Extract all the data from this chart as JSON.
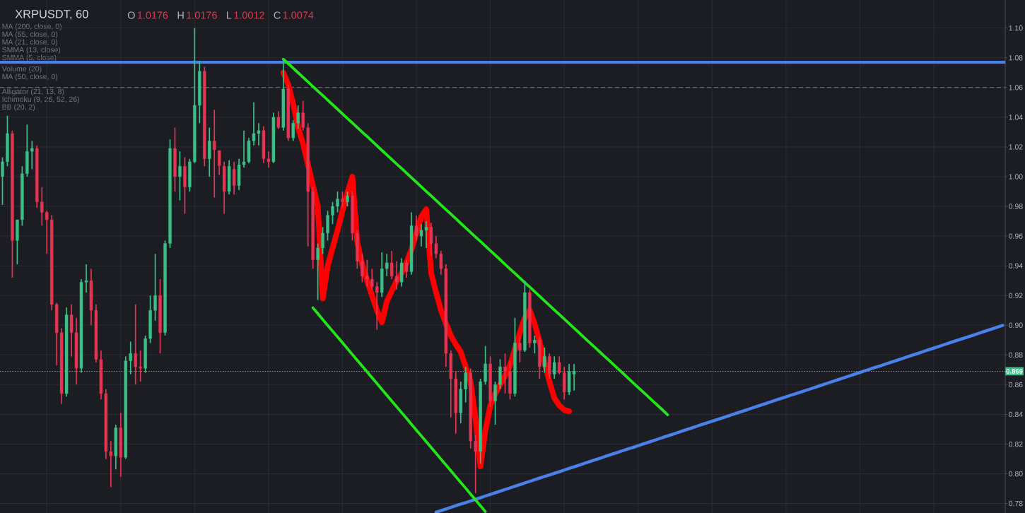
{
  "chart_data": {
    "type": "candlestick",
    "title": "XRPUSDT, 60",
    "categories": [
      null,
      null,
      null,
      null,
      null,
      null,
      null,
      null,
      null,
      null,
      null,
      null,
      null,
      null,
      null,
      null,
      null,
      null,
      null,
      null,
      null,
      null,
      null,
      null,
      null,
      null,
      null,
      null,
      null,
      null,
      null,
      null,
      null,
      null,
      null,
      null,
      null,
      null,
      null,
      null,
      null,
      null,
      null,
      null,
      null,
      null,
      null,
      null,
      null,
      null,
      null,
      null,
      null,
      null,
      null,
      null,
      null,
      null,
      null,
      null,
      null,
      null,
      null,
      null,
      null,
      null,
      null,
      null,
      null,
      null,
      null,
      null,
      null,
      null,
      null,
      null,
      null,
      null,
      null,
      null,
      null,
      null,
      null,
      null,
      null,
      null,
      null,
      null,
      null,
      null,
      null,
      null,
      null,
      null,
      null,
      null,
      null,
      null,
      null,
      null,
      null,
      null,
      null,
      null,
      null,
      null,
      null,
      null,
      null,
      null,
      null,
      null,
      null,
      null,
      null,
      null,
      null,
      null,
      null,
      null,
      null,
      null,
      null,
      null,
      null,
      null,
      null,
      null,
      null,
      null,
      null,
      null,
      null,
      null,
      null,
      null,
      null,
      null,
      null,
      null,
      null,
      null,
      null,
      null,
      null,
      null,
      null,
      null,
      null,
      null,
      null,
      null,
      null,
      null,
      null,
      null,
      null,
      null,
      null,
      null,
      null,
      null,
      null,
      null,
      null,
      null,
      null,
      null,
      null,
      null,
      null,
      null,
      null,
      null,
      null,
      null,
      null,
      null,
      null,
      null,
      null,
      null,
      null,
      null,
      null,
      null,
      null,
      null,
      null,
      null,
      null,
      null,
      null,
      null,
      null,
      null,
      null,
      null,
      null,
      null,
      null,
      null,
      null,
      null
    ],
    "ohlc": [
      [
        1.0,
        1.013,
        0.981,
        1.01
      ],
      [
        1.01,
        1.041,
        1.007,
        1.029
      ],
      [
        1.029,
        1.031,
        0.932,
        0.957
      ],
      [
        0.957,
        0.971,
        0.941,
        0.971
      ],
      [
        0.971,
        1.007,
        0.967,
        1.002
      ],
      [
        1.002,
        1.035,
        1.0,
        1.017
      ],
      [
        1.017,
        1.024,
        1.005,
        1.019
      ],
      [
        1.019,
        1.021,
        0.979,
        0.983
      ],
      [
        0.983,
        0.993,
        0.967,
        0.976
      ],
      [
        0.976,
        0.977,
        0.948,
        0.971
      ],
      [
        0.971,
        0.974,
        0.91,
        0.914
      ],
      [
        0.914,
        0.915,
        0.873,
        0.895
      ],
      [
        0.895,
        0.898,
        0.847,
        0.854
      ],
      [
        0.854,
        0.912,
        0.852,
        0.907
      ],
      [
        0.907,
        0.914,
        0.879,
        0.895
      ],
      [
        0.895,
        0.905,
        0.86,
        0.871
      ],
      [
        0.871,
        0.931,
        0.868,
        0.929
      ],
      [
        0.929,
        0.941,
        0.922,
        0.93
      ],
      [
        0.93,
        0.938,
        0.9,
        0.91
      ],
      [
        0.91,
        0.914,
        0.875,
        0.877
      ],
      [
        0.877,
        0.883,
        0.85,
        0.854
      ],
      [
        0.854,
        0.857,
        0.81,
        0.815
      ],
      [
        0.815,
        0.822,
        0.791,
        0.812
      ],
      [
        0.812,
        0.833,
        0.803,
        0.831
      ],
      [
        0.831,
        0.841,
        0.798,
        0.811
      ],
      [
        0.811,
        0.879,
        0.81,
        0.876
      ],
      [
        0.876,
        0.889,
        0.867,
        0.881
      ],
      [
        0.881,
        0.914,
        0.86,
        0.872
      ],
      [
        0.872,
        0.883,
        0.862,
        0.871
      ],
      [
        0.871,
        0.893,
        0.868,
        0.891
      ],
      [
        0.891,
        0.92,
        0.888,
        0.91
      ],
      [
        0.91,
        0.948,
        0.903,
        0.92
      ],
      [
        0.92,
        0.931,
        0.881,
        0.895
      ],
      [
        0.895,
        0.957,
        0.893,
        0.955
      ],
      [
        0.955,
        1.025,
        0.952,
        1.019
      ],
      [
        1.019,
        1.033,
        0.99,
        1.0
      ],
      [
        1.0,
        1.017,
        0.984,
        1.007
      ],
      [
        1.007,
        1.013,
        0.975,
        0.993
      ],
      [
        0.993,
        1.012,
        0.99,
        1.01
      ],
      [
        1.01,
        1.1,
        1.009,
        1.048
      ],
      [
        1.048,
        1.078,
        1.036,
        1.071
      ],
      [
        1.071,
        1.074,
        1.007,
        1.012
      ],
      [
        1.012,
        1.033,
        1.0,
        1.024
      ],
      [
        1.024,
        1.045,
        0.986,
        1.018
      ],
      [
        1.0176,
        1.0176,
        1.0012,
        1.0074
      ],
      [
        1.007,
        1.01,
        0.975,
        0.99
      ],
      [
        0.99,
        1.011,
        0.988,
        1.007
      ],
      [
        1.005,
        1.01,
        0.988,
        0.994
      ],
      [
        0.994,
        1.012,
        0.991,
        1.008
      ],
      [
        1.008,
        1.031,
        1.006,
        1.01
      ],
      [
        1.01,
        1.026,
        1.009,
        1.024
      ],
      [
        1.024,
        1.05,
        1.021,
        1.029
      ],
      [
        1.029,
        1.036,
        1.021,
        1.031
      ],
      [
        1.031,
        1.034,
        1.009,
        1.012
      ],
      [
        1.012,
        1.017,
        1.006,
        1.01
      ],
      [
        1.01,
        1.043,
        1.009,
        1.04
      ],
      [
        1.04,
        1.044,
        1.032,
        1.033
      ],
      [
        1.033,
        1.079,
        1.031,
        1.059
      ],
      [
        1.059,
        1.062,
        1.024,
        1.026
      ],
      [
        1.026,
        1.038,
        1.024,
        1.036
      ],
      [
        1.036,
        1.048,
        1.032,
        1.043
      ],
      [
        1.043,
        1.051,
        1.031,
        1.033
      ],
      [
        1.033,
        1.036,
        0.953,
        0.99
      ],
      [
        0.99,
        0.993,
        0.938,
        0.944
      ],
      [
        0.944,
        0.955,
        0.917,
        0.952
      ],
      [
        0.952,
        0.966,
        0.948,
        0.962
      ],
      [
        0.962,
        0.977,
        0.957,
        0.974
      ],
      [
        0.974,
        0.983,
        0.968,
        0.98
      ],
      [
        0.98,
        0.99,
        0.976,
        0.985
      ],
      [
        0.985,
        0.99,
        0.979,
        0.983
      ],
      [
        0.983,
        0.99,
        0.98,
        0.987
      ],
      [
        0.987,
        0.99,
        0.957,
        0.962
      ],
      [
        0.962,
        0.964,
        0.938,
        0.943
      ],
      [
        0.943,
        0.948,
        0.929,
        0.933
      ],
      [
        0.933,
        0.944,
        0.926,
        0.931
      ],
      [
        0.931,
        0.938,
        0.924,
        0.926
      ],
      [
        0.926,
        0.929,
        0.897,
        0.922
      ],
      [
        0.922,
        0.949,
        0.919,
        0.938
      ],
      [
        0.938,
        0.948,
        0.933,
        0.942
      ],
      [
        0.942,
        0.95,
        0.931,
        0.933
      ],
      [
        0.933,
        0.943,
        0.924,
        0.929
      ],
      [
        0.929,
        0.945,
        0.926,
        0.942
      ],
      [
        0.942,
        0.944,
        0.932,
        0.936
      ],
      [
        0.936,
        0.976,
        0.934,
        0.967
      ],
      [
        0.967,
        0.974,
        0.957,
        0.96
      ],
      [
        0.96,
        0.968,
        0.953,
        0.964
      ],
      [
        0.964,
        0.97,
        0.952,
        0.966
      ],
      [
        0.966,
        0.969,
        0.947,
        0.955
      ],
      [
        0.955,
        0.96,
        0.945,
        0.948
      ],
      [
        0.948,
        0.95,
        0.934,
        0.938
      ],
      [
        0.938,
        0.941,
        0.872,
        0.881
      ],
      [
        0.881,
        0.883,
        0.838,
        0.864
      ],
      [
        0.864,
        0.869,
        0.827,
        0.841
      ],
      [
        0.841,
        0.862,
        0.834,
        0.857
      ],
      [
        0.857,
        0.872,
        0.848,
        0.868
      ],
      [
        0.868,
        0.871,
        0.817,
        0.822
      ],
      [
        0.822,
        0.826,
        0.787,
        0.815
      ],
      [
        0.815,
        0.864,
        0.807,
        0.862
      ],
      [
        0.862,
        0.886,
        0.86,
        0.874
      ],
      [
        0.874,
        0.879,
        0.845,
        0.849
      ],
      [
        0.849,
        0.862,
        0.833,
        0.86
      ],
      [
        0.86,
        0.877,
        0.857,
        0.872
      ],
      [
        0.872,
        0.881,
        0.854,
        0.869
      ],
      [
        0.869,
        0.876,
        0.85,
        0.854
      ],
      [
        0.854,
        0.905,
        0.852,
        0.888
      ],
      [
        0.888,
        0.893,
        0.875,
        0.883
      ],
      [
        0.883,
        0.93,
        0.882,
        0.922
      ],
      [
        0.922,
        0.924,
        0.885,
        0.888
      ],
      [
        0.888,
        0.893,
        0.881,
        0.89
      ],
      [
        0.89,
        0.892,
        0.864,
        0.872
      ],
      [
        0.872,
        0.885,
        0.868,
        0.879
      ],
      [
        0.879,
        0.881,
        0.864,
        0.867
      ],
      [
        0.867,
        0.879,
        0.864,
        0.875
      ],
      [
        0.875,
        0.879,
        0.867,
        0.868
      ],
      [
        0.868,
        0.872,
        0.85,
        0.855
      ],
      [
        0.855,
        0.874,
        0.853,
        0.869
      ],
      [
        0.867,
        0.874,
        0.856,
        0.869
      ],
      null,
      null,
      null,
      null,
      null,
      null,
      null,
      null,
      null,
      null,
      null,
      null,
      null,
      null,
      null,
      null,
      null,
      null,
      null,
      null,
      null,
      null,
      null,
      null,
      null,
      null,
      null,
      null,
      null,
      null,
      null,
      null,
      null,
      null,
      null,
      null,
      null,
      null,
      null,
      null,
      null,
      null,
      null,
      null,
      null,
      null,
      null,
      null,
      null,
      null,
      null,
      null,
      null,
      null,
      null,
      null,
      null,
      null,
      null,
      null,
      null,
      null,
      null,
      null,
      null,
      null,
      null,
      null,
      null,
      null,
      null,
      null,
      null,
      null,
      null,
      null,
      null,
      null,
      null,
      null,
      null,
      null,
      null,
      null,
      null,
      null,
      null
    ],
    "colors": [
      "#3bbf86",
      "#3bbf86",
      "#e53452",
      "#3bbf86",
      "#3bbf86",
      "#3bbf86",
      "#3bbf86",
      "#e53452",
      "#e53452",
      "#e53452",
      "#e53452",
      "#e53452",
      "#e53452",
      "#3bbf86",
      "#e53452",
      "#e53452",
      "#3bbf86",
      "#3bbf86",
      "#e53452",
      "#e53452",
      "#e53452",
      "#e53452",
      "#e53452",
      "#3bbf86",
      "#e53452",
      "#3bbf86",
      "#3bbf86",
      "#e53452",
      "#e53452",
      "#3bbf86",
      "#3bbf86",
      "#3bbf86",
      "#e53452",
      "#3bbf86",
      "#3bbf86",
      "#e53452",
      "#3bbf86",
      "#e53452",
      "#3bbf86",
      "#3bbf86",
      "#3bbf86",
      "#e53452",
      "#3bbf86",
      "#e53452",
      "#e53452",
      "#e53452",
      "#3bbf86",
      "#e53452",
      "#3bbf86",
      "#3bbf86",
      "#3bbf86",
      "#3bbf86",
      "#3bbf86",
      "#e53452",
      "#e53452",
      "#3bbf86",
      "#e53452",
      "#3bbf86",
      "#e53452",
      "#3bbf86",
      "#3bbf86",
      "#e53452",
      "#e53452",
      "#e53452",
      "#3bbf86",
      "#3bbf86",
      "#3bbf86",
      "#3bbf86",
      "#3bbf86",
      "#e53452",
      "#3bbf86",
      "#e53452",
      "#e53452",
      "#e53452",
      "#e53452",
      "#e53452",
      "#e53452",
      "#3bbf86",
      "#3bbf86",
      "#e53452",
      "#e53452",
      "#3bbf86",
      "#e53452",
      "#3bbf86",
      "#e53452",
      "#3bbf86",
      "#3bbf86",
      "#e53452",
      "#e53452",
      "#e53452",
      "#e53452",
      "#e53452",
      "#e53452",
      "#3bbf86",
      "#3bbf86",
      "#e53452",
      "#e53452",
      "#3bbf86",
      "#3bbf86",
      "#e53452",
      "#3bbf86",
      "#3bbf86",
      "#e53452",
      "#e53452",
      "#3bbf86",
      "#e53452",
      "#3bbf86",
      "#e53452",
      "#3bbf86",
      "#e53452",
      "#3bbf86",
      "#e53452",
      "#3bbf86",
      "#e53452",
      "#e53452",
      "#3bbf86",
      "#3bbf86",
      null,
      null,
      null,
      null,
      null,
      null,
      null,
      null,
      null,
      null,
      null,
      null,
      null,
      null,
      null,
      null,
      null,
      null,
      null,
      null,
      null,
      null,
      null,
      null,
      null,
      null,
      null,
      null,
      null,
      null,
      null,
      null,
      null,
      null,
      null,
      null,
      null,
      null,
      null,
      null,
      null,
      null,
      null,
      null,
      null,
      null,
      null,
      null,
      null,
      null,
      null,
      null,
      null,
      null,
      null,
      null,
      null,
      null,
      null,
      null,
      null,
      null,
      null,
      null,
      null,
      null,
      null,
      null,
      null,
      null,
      null,
      null,
      null,
      null,
      null,
      null,
      null,
      null,
      null,
      null,
      null,
      null,
      null,
      null,
      null,
      null,
      null
    ],
    "series": [
      {
        "type": "line",
        "color": "#4a80e8",
        "values": [
          null,
          null,
          null,
          null,
          null,
          null,
          null,
          null,
          null,
          null,
          null,
          null,
          null,
          null,
          null,
          null,
          null,
          null,
          null,
          null,
          null,
          null,
          null,
          null,
          null,
          null,
          null,
          null,
          null,
          null,
          null,
          null,
          null,
          null,
          null,
          null,
          null,
          null,
          null,
          null,
          null,
          null,
          null,
          null,
          null,
          null,
          null,
          null,
          null,
          null,
          null,
          null,
          null,
          null,
          null,
          null,
          null,
          null,
          null,
          null,
          null,
          null,
          null,
          null,
          null,
          null,
          null,
          null,
          null,
          null,
          null,
          null,
          null,
          null,
          null,
          null,
          null,
          null,
          null,
          null,
          null,
          null,
          null,
          null,
          null,
          null,
          null,
          null,
          0.7741,
          0.7752,
          0.7763,
          0.7774,
          0.7785,
          0.7796,
          0.7806,
          0.7817,
          0.7828,
          0.7839,
          0.785,
          0.7861,
          0.7872,
          0.7883,
          0.7894,
          0.7905,
          0.7916,
          0.7927,
          0.7938,
          0.7949,
          0.796,
          0.7971,
          0.7982,
          0.7992,
          0.8003,
          0.8014,
          0.8025,
          0.8036,
          0.8047,
          0.8058,
          0.8069,
          0.808,
          0.8091,
          0.8102,
          0.8113,
          0.8124,
          0.8135,
          0.8146,
          0.8157,
          0.8168,
          0.8178,
          0.8189,
          0.82,
          0.8211,
          0.8222,
          0.8233,
          0.8244,
          0.8255,
          0.8266,
          0.8277,
          0.8288,
          0.8299,
          0.831,
          0.8321,
          0.8332,
          0.8343,
          0.8354,
          0.8364,
          0.8375,
          0.8386,
          0.8397,
          0.8408,
          0.8419,
          0.843,
          0.8441,
          0.8452,
          0.8463,
          0.8474,
          0.8485,
          0.8496,
          0.8507,
          0.8518,
          0.8529,
          0.8539,
          0.855,
          0.8561,
          0.8572,
          0.8583,
          0.8594,
          0.8605,
          0.8616,
          0.8627,
          0.8638,
          0.8649,
          0.866,
          0.8671,
          0.8682,
          0.8693,
          0.8704,
          0.8715,
          0.8725,
          0.8736,
          0.8747,
          0.8758,
          0.8769,
          0.878,
          0.8791,
          0.8802,
          0.8813,
          0.8824,
          0.8835,
          0.8846,
          0.8857,
          0.8868,
          0.8879,
          0.889,
          0.8901,
          0.8911,
          0.8922,
          0.8933,
          0.8944,
          0.8955,
          0.8966,
          0.8977,
          0.8988,
          0.8999
        ]
      },
      {
        "type": "line",
        "color": "#22e61a",
        "values": [
          null,
          null,
          null,
          null,
          null,
          null,
          null,
          null,
          null,
          null,
          null,
          null,
          null,
          null,
          null,
          null,
          null,
          null,
          null,
          null,
          null,
          null,
          null,
          null,
          null,
          null,
          null,
          null,
          null,
          null,
          null,
          null,
          null,
          null,
          null,
          null,
          null,
          null,
          null,
          null,
          null,
          null,
          null,
          null,
          null,
          null,
          null,
          null,
          null,
          null,
          null,
          null,
          null,
          null,
          null,
          null,
          null,
          1.0791,
          1.0761,
          1.073,
          1.0699,
          1.0669,
          1.0638,
          1.0607,
          1.0576,
          1.0546,
          1.0515,
          1.0484,
          1.0454,
          1.0423,
          1.0392,
          1.0362,
          1.0331,
          1.03,
          1.027,
          1.0239,
          1.0208,
          1.0177,
          1.0147,
          1.0116,
          1.0085,
          1.0055,
          1.0024,
          0.9993,
          0.9963,
          0.9932,
          0.9901,
          0.9871,
          0.984,
          0.9809,
          0.9778,
          0.9748,
          0.9717,
          0.9686,
          0.9656,
          0.9625,
          0.9594,
          0.9564,
          0.9533,
          0.9502,
          0.9472,
          0.9441,
          0.941,
          0.9379,
          0.9349,
          0.9318,
          0.9287,
          0.9257,
          0.9226,
          0.9195,
          0.9165,
          0.9134,
          0.9103,
          0.9073,
          0.9042,
          0.9011,
          0.898,
          0.895,
          0.8919,
          0.8888,
          0.8858,
          0.8827,
          0.8796,
          0.8766,
          0.8735,
          0.8704,
          0.8674,
          0.8643,
          0.8612,
          0.8581,
          0.8551,
          0.852,
          0.8489,
          0.8459,
          0.8428,
          0.8397,
          null,
          null,
          null,
          null,
          null,
          null,
          null,
          null,
          null,
          null,
          null,
          null,
          null,
          null,
          null,
          null,
          null,
          null,
          null,
          null,
          null,
          null,
          null,
          null,
          null,
          null,
          null,
          null,
          null,
          null,
          null,
          null,
          null,
          null,
          null,
          null,
          null,
          null,
          null,
          null,
          null,
          null,
          null,
          null,
          null,
          null,
          null,
          null,
          null,
          null,
          null,
          null,
          null,
          null,
          null,
          null,
          null,
          null,
          null,
          null,
          null,
          null,
          null,
          null,
          null,
          null,
          null,
          null
        ]
      },
      {
        "type": "line",
        "color": "#22e61a",
        "values": [
          null,
          null,
          null,
          null,
          null,
          null,
          null,
          null,
          null,
          null,
          null,
          null,
          null,
          null,
          null,
          null,
          null,
          null,
          null,
          null,
          null,
          null,
          null,
          null,
          null,
          null,
          null,
          null,
          null,
          null,
          null,
          null,
          null,
          null,
          null,
          null,
          null,
          null,
          null,
          null,
          null,
          null,
          null,
          null,
          null,
          null,
          null,
          null,
          null,
          null,
          null,
          null,
          null,
          null,
          null,
          null,
          null,
          null,
          null,
          null,
          null,
          null,
          null,
          0.9117,
          0.9078,
          0.9038,
          0.8999,
          0.896,
          0.8921,
          0.8882,
          0.8843,
          0.8803,
          0.8764,
          0.8725,
          0.8686,
          0.8647,
          0.8608,
          0.8568,
          0.8529,
          0.849,
          0.8451,
          0.8412,
          0.8373,
          0.8333,
          0.8294,
          0.8255,
          0.8216,
          0.8177,
          0.8138,
          0.8098,
          0.8059,
          0.802,
          0.7981,
          0.7942,
          0.7903,
          0.7863,
          0.7824,
          0.7785,
          0.7746,
          null,
          null,
          null,
          null,
          null,
          null,
          null,
          null,
          null,
          null,
          null,
          null,
          null,
          null,
          null,
          null,
          null,
          null,
          null,
          null,
          null,
          null,
          null,
          null,
          null,
          null,
          null,
          null,
          null,
          null,
          null,
          null,
          null,
          null,
          null,
          null,
          null,
          null,
          null,
          null,
          null,
          null,
          null,
          null,
          null,
          null,
          null,
          null,
          null,
          null,
          null,
          null,
          null,
          null,
          null,
          null,
          null,
          null,
          null,
          null,
          null,
          null,
          null,
          null,
          null,
          null,
          null,
          null,
          null,
          null,
          null,
          null,
          null,
          null,
          null,
          null,
          null,
          null,
          null,
          null,
          null,
          null,
          null,
          null,
          null,
          null,
          null,
          null,
          null,
          null,
          null,
          null,
          null,
          null,
          null,
          null,
          null,
          null,
          null,
          null,
          null,
          null,
          null,
          null,
          null
        ]
      },
      {
        "type": "line",
        "color": "#ff0000",
        "values": [
          null,
          null,
          null,
          null,
          null,
          null,
          null,
          null,
          null,
          null,
          null,
          null,
          null,
          null,
          null,
          null,
          null,
          null,
          null,
          null,
          null,
          null,
          null,
          null,
          null,
          null,
          null,
          null,
          null,
          null,
          null,
          null,
          null,
          null,
          null,
          null,
          null,
          null,
          null,
          null,
          null,
          null,
          null,
          null,
          null,
          null,
          null,
          null,
          null,
          null,
          null,
          null,
          null,
          null,
          null,
          null,
          null,
          1.07,
          1.062,
          1.049,
          1.033,
          1.022,
          1.008,
          0.994,
          0.98,
          0.918,
          0.94,
          0.952,
          0.964,
          0.977,
          0.989,
          1.0,
          0.956,
          0.941,
          0.93,
          0.92,
          0.91,
          0.902,
          0.916,
          0.923,
          0.93,
          0.935,
          0.942,
          0.951,
          0.962,
          0.973,
          0.978,
          0.935,
          0.922,
          0.91,
          0.901,
          0.893,
          0.887,
          0.882,
          0.872,
          0.862,
          0.837,
          0.805,
          0.829,
          0.846,
          0.854,
          0.86,
          0.866,
          0.873,
          0.884,
          0.895,
          0.905,
          0.91,
          0.901,
          0.889,
          0.875,
          0.862,
          0.851,
          0.846,
          0.843,
          0.842,
          null,
          null,
          null,
          null,
          null,
          null,
          null,
          null,
          null,
          null,
          null,
          null,
          null,
          null,
          null,
          null,
          null,
          null,
          null,
          null,
          null,
          null,
          null,
          null,
          null,
          null,
          null,
          null,
          null,
          null,
          null,
          null,
          null,
          null,
          null,
          null,
          null,
          null,
          null,
          null,
          null,
          null,
          null,
          null,
          null,
          null,
          null,
          null,
          null,
          null,
          null,
          null,
          null,
          null,
          null,
          null,
          null,
          null,
          null,
          null,
          null,
          null,
          null,
          null,
          null,
          null,
          null,
          null,
          null,
          null,
          null,
          null,
          null,
          null,
          null,
          null,
          null,
          null,
          null,
          null,
          null,
          null,
          null,
          null,
          null,
          null,
          null,
          null
        ]
      }
    ],
    "ylim": [
      0.7736,
      1.1189
    ],
    "yticks": [
      {
        "value": 1.1,
        "label": "1.10"
      },
      {
        "value": 1.08,
        "label": "1.08"
      },
      {
        "value": 1.06,
        "label": "1.06"
      },
      {
        "value": 1.04,
        "label": "1.04"
      },
      {
        "value": 1.02,
        "label": "1.02"
      },
      {
        "value": 1.0,
        "label": "1.00"
      },
      {
        "value": 0.98,
        "label": "0.98"
      },
      {
        "value": 0.96,
        "label": "0.96"
      },
      {
        "value": 0.94,
        "label": "0.94"
      },
      {
        "value": 0.92,
        "label": "0.92"
      },
      {
        "value": 0.9,
        "label": "0.90"
      },
      {
        "value": 0.88,
        "label": "0.88"
      },
      {
        "value": 0.86,
        "label": "0.86"
      },
      {
        "value": 0.84,
        "label": "0.84"
      },
      {
        "value": 0.82,
        "label": "0.82"
      },
      {
        "value": 0.8,
        "label": "0.80"
      },
      {
        "value": 0.78,
        "label": "0.78"
      }
    ],
    "grid": true,
    "ref_lines": [
      {
        "axis": "y",
        "value": 1.077,
        "color": "#4a80e8",
        "line_style": "solid"
      },
      {
        "axis": "y",
        "value": 1.06,
        "color": "#787b86",
        "line_style": "dashed"
      },
      {
        "axis": "y",
        "value": 0.869,
        "label": "0.869",
        "color": "#3bbf86",
        "line_style": "dotted"
      }
    ],
    "annotations": [
      "O",
      "1.0176",
      "H",
      "1.0176",
      "L",
      "1.0012",
      "C",
      "1.0074",
      "MA (200, close, 0)",
      "MA (55, close, 0)",
      "MA (21, close, 0)",
      "SMMA (13, close)",
      "SMMA (5, close)",
      "Volume (20)",
      "MA (50, close, 0)",
      "Alligator (21, 13, 8)",
      "Ichimoku (9, 26, 52, 26)",
      "BB (20, 2)"
    ]
  }
}
